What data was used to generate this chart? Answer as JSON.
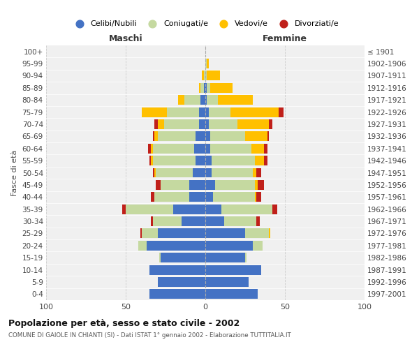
{
  "age_groups": [
    "0-4",
    "5-9",
    "10-14",
    "15-19",
    "20-24",
    "25-29",
    "30-34",
    "35-39",
    "40-44",
    "45-49",
    "50-54",
    "55-59",
    "60-64",
    "65-69",
    "70-74",
    "75-79",
    "80-84",
    "85-89",
    "90-94",
    "95-99",
    "100+"
  ],
  "birth_years": [
    "1997-2001",
    "1992-1996",
    "1987-1991",
    "1982-1986",
    "1977-1981",
    "1972-1976",
    "1967-1971",
    "1962-1966",
    "1957-1961",
    "1952-1956",
    "1947-1951",
    "1942-1946",
    "1937-1941",
    "1932-1936",
    "1927-1931",
    "1922-1926",
    "1917-1921",
    "1912-1916",
    "1907-1911",
    "1902-1906",
    "≤ 1901"
  ],
  "maschi": {
    "celibi": [
      35,
      30,
      35,
      28,
      37,
      30,
      15,
      20,
      10,
      10,
      8,
      6,
      7,
      6,
      4,
      4,
      3,
      1,
      0,
      0,
      0
    ],
    "coniugati": [
      0,
      0,
      0,
      1,
      5,
      10,
      18,
      30,
      22,
      18,
      23,
      27,
      26,
      24,
      22,
      20,
      10,
      2,
      1,
      0,
      0
    ],
    "vedovi": [
      0,
      0,
      0,
      0,
      0,
      0,
      0,
      0,
      0,
      0,
      1,
      1,
      1,
      2,
      4,
      16,
      4,
      1,
      1,
      0,
      0
    ],
    "divorziati": [
      0,
      0,
      0,
      0,
      0,
      1,
      1,
      2,
      2,
      3,
      1,
      1,
      2,
      1,
      2,
      0,
      0,
      0,
      0,
      0,
      0
    ]
  },
  "femmine": {
    "nubili": [
      33,
      27,
      35,
      25,
      30,
      25,
      12,
      10,
      5,
      6,
      4,
      4,
      3,
      3,
      2,
      2,
      1,
      1,
      0,
      0,
      0
    ],
    "coniugate": [
      0,
      0,
      0,
      1,
      6,
      15,
      20,
      32,
      26,
      25,
      26,
      27,
      26,
      22,
      18,
      14,
      7,
      2,
      1,
      1,
      0
    ],
    "vedove": [
      0,
      0,
      0,
      0,
      0,
      1,
      0,
      0,
      1,
      2,
      2,
      6,
      8,
      14,
      20,
      30,
      22,
      14,
      8,
      1,
      0
    ],
    "divorziate": [
      0,
      0,
      0,
      0,
      0,
      0,
      2,
      3,
      3,
      4,
      3,
      2,
      2,
      1,
      2,
      3,
      0,
      0,
      0,
      0,
      0
    ]
  },
  "colors": {
    "celibi": "#4472c4",
    "coniugati": "#c5d9a0",
    "vedovi": "#ffc000",
    "divorziati": "#c0201a"
  },
  "title": "Popolazione per età, sesso e stato civile - 2002",
  "subtitle": "COMUNE DI GAIOLE IN CHIANTI (SI) - Dati ISTAT 1° gennaio 2002 - Elaborazione TUTTITALIA.IT",
  "xlabel_left": "Maschi",
  "xlabel_right": "Femmine",
  "ylabel_left": "Fasce di età",
  "xlim": 100,
  "legend_labels": [
    "Celibi/Nubili",
    "Coniugati/e",
    "Vedovi/e",
    "Divorziati/e"
  ],
  "bg_color": "#ffffff",
  "grid_color": "#cccccc"
}
